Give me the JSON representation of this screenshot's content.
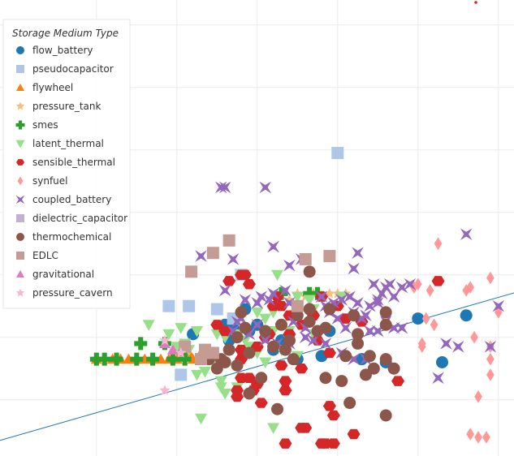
{
  "chart_data": {
    "type": "scatter",
    "title": "",
    "xlabel": "",
    "ylabel": "",
    "xlim": [
      0,
      6.5
    ],
    "ylim": [
      0,
      5.7
    ],
    "grid": true,
    "legend": {
      "title": "Storage Medium Type",
      "placement": "top-left"
    },
    "trendline": {
      "x": [
        0,
        6.5
      ],
      "y": [
        0.25,
        2.65
      ],
      "color": "#1f77b4"
    },
    "series": [
      {
        "name": "flow_battery",
        "marker": "circle",
        "color": "#1f77b4",
        "points": [
          [
            5.8,
            2.25
          ],
          [
            5.5,
            1.5
          ],
          [
            5.2,
            2.2
          ],
          [
            4.8,
            1.5
          ],
          [
            4.1,
            2.0
          ],
          [
            4.0,
            1.6
          ],
          [
            3.7,
            1.55
          ],
          [
            3.5,
            1.85
          ],
          [
            3.2,
            2.1
          ],
          [
            3.1,
            2.0
          ],
          [
            2.4,
            1.95
          ],
          [
            2.9,
            2.05
          ],
          [
            2.8,
            2.1
          ],
          [
            2.85,
            1.85
          ],
          [
            3.6,
            1.85
          ],
          [
            3.4,
            1.7
          ],
          [
            3.05,
            2.35
          ],
          [
            4.5,
            1.55
          ]
        ]
      },
      {
        "name": "pseudocapacitor",
        "marker": "square",
        "color": "#aec7e8",
        "points": [
          [
            4.2,
            4.85
          ],
          [
            2.1,
            2.4
          ],
          [
            2.35,
            2.4
          ],
          [
            2.7,
            2.35
          ],
          [
            2.25,
            1.3
          ],
          [
            2.9,
            2.2
          ],
          [
            3.0,
            2.9
          ]
        ]
      },
      {
        "name": "flywheel",
        "marker": "triangle-up",
        "color": "#ff7f0e",
        "points": [
          [
            1.2,
            1.55
          ],
          [
            1.4,
            1.55
          ],
          [
            1.5,
            1.55
          ],
          [
            1.6,
            1.55
          ],
          [
            1.7,
            1.55
          ],
          [
            1.8,
            1.55
          ],
          [
            1.9,
            1.55
          ],
          [
            2.0,
            1.55
          ],
          [
            2.1,
            1.55
          ],
          [
            2.2,
            1.55
          ],
          [
            2.4,
            1.55
          ],
          [
            2.55,
            1.55
          ],
          [
            2.65,
            1.55
          ],
          [
            2.75,
            1.55
          ],
          [
            2.5,
            1.65
          ],
          [
            2.35,
            1.65
          ]
        ]
      },
      {
        "name": "pressure_tank",
        "marker": "star",
        "color": "#ffbb78",
        "points": [
          [
            4.2,
            2.6
          ],
          [
            4.3,
            2.6
          ],
          [
            3.7,
            2.6
          ],
          [
            3.9,
            2.6
          ],
          [
            3.6,
            2.5
          ],
          [
            3.8,
            2.55
          ],
          [
            4.1,
            2.6
          ]
        ]
      },
      {
        "name": "smes",
        "marker": "plus",
        "color": "#2ca02c",
        "points": [
          [
            1.2,
            1.55
          ],
          [
            1.3,
            1.55
          ],
          [
            1.45,
            1.55
          ],
          [
            1.7,
            1.55
          ],
          [
            1.9,
            1.55
          ],
          [
            2.15,
            1.55
          ],
          [
            2.3,
            1.55
          ],
          [
            1.75,
            1.8
          ],
          [
            2.05,
            1.8
          ],
          [
            2.25,
            1.7
          ],
          [
            3.5,
            2.6
          ],
          [
            3.85,
            2.6
          ],
          [
            3.95,
            2.6
          ]
        ]
      },
      {
        "name": "latent_thermal",
        "marker": "triangle-down",
        "color": "#98df8a",
        "points": [
          [
            1.85,
            2.1
          ],
          [
            2.25,
            2.05
          ],
          [
            2.45,
            2.0
          ],
          [
            2.3,
            1.8
          ],
          [
            2.2,
            1.75
          ],
          [
            2.35,
            1.7
          ],
          [
            2.5,
            1.55
          ],
          [
            2.55,
            1.35
          ],
          [
            2.65,
            1.5
          ],
          [
            2.45,
            1.3
          ],
          [
            2.75,
            1.2
          ],
          [
            2.8,
            1.0
          ],
          [
            2.75,
            1.1
          ],
          [
            3.0,
            1.2
          ],
          [
            3.3,
            1.5
          ],
          [
            3.5,
            1.7
          ],
          [
            3.7,
            1.6
          ],
          [
            3.6,
            2.0
          ],
          [
            3.8,
            2.1
          ],
          [
            3.9,
            1.95
          ],
          [
            3.4,
            2.0
          ],
          [
            3.2,
            2.3
          ],
          [
            3.3,
            2.2
          ],
          [
            2.95,
            1.95
          ],
          [
            3.05,
            1.85
          ],
          [
            3.1,
            1.75
          ],
          [
            3.0,
            1.65
          ],
          [
            2.8,
            1.9
          ],
          [
            2.7,
            1.95
          ],
          [
            3.45,
            2.9
          ],
          [
            3.7,
            2.55
          ],
          [
            3.85,
            2.5
          ],
          [
            2.5,
            0.6
          ],
          [
            3.4,
            0.45
          ],
          [
            3.9,
            2.35
          ],
          [
            3.6,
            1.85
          ],
          [
            2.1,
            1.95
          ],
          [
            2.95,
            1.1
          ],
          [
            3.2,
            1.65
          ],
          [
            3.4,
            2.3
          ],
          [
            4.25,
            2.55
          ]
        ]
      },
      {
        "name": "sensible_thermal",
        "marker": "hexagon",
        "color": "#d62728",
        "points": [
          [
            3.0,
            2.9
          ],
          [
            3.05,
            2.9
          ],
          [
            2.85,
            2.8
          ],
          [
            3.4,
            2.4
          ],
          [
            3.5,
            1.45
          ],
          [
            3.55,
            1.2
          ],
          [
            3.55,
            1.05
          ],
          [
            3.75,
            1.4
          ],
          [
            3.0,
            1.55
          ],
          [
            3.0,
            1.25
          ],
          [
            3.1,
            1.25
          ],
          [
            2.95,
            1.05
          ],
          [
            2.95,
            0.95
          ],
          [
            3.15,
            1.05
          ],
          [
            3.2,
            1.15
          ],
          [
            3.25,
            0.85
          ],
          [
            3.0,
            1.7
          ],
          [
            2.7,
            2.1
          ],
          [
            2.8,
            2.0
          ],
          [
            3.5,
            2.4
          ],
          [
            3.6,
            1.95
          ],
          [
            3.95,
            1.85
          ],
          [
            4.1,
            1.65
          ],
          [
            4.15,
            0.65
          ],
          [
            4.1,
            0.8
          ],
          [
            3.75,
            0.45
          ],
          [
            3.8,
            0.45
          ],
          [
            3.55,
            0.2
          ],
          [
            4.0,
            0.2
          ],
          [
            4.05,
            0.2
          ],
          [
            4.15,
            0.2
          ],
          [
            4.4,
            0.35
          ],
          [
            4.95,
            1.2
          ],
          [
            3.9,
            2.25
          ],
          [
            4.5,
            2.15
          ],
          [
            3.6,
            2.25
          ],
          [
            3.1,
            2.75
          ],
          [
            5.45,
            2.8
          ],
          [
            3.45,
            2.55
          ],
          [
            3.3,
            1.9
          ],
          [
            3.2,
            1.75
          ],
          [
            3.35,
            1.95
          ],
          [
            3.75,
            2.1
          ],
          [
            3.65,
            1.55
          ],
          [
            4.3,
            2.2
          ],
          [
            4.0,
            2.55
          ],
          [
            3.85,
            2.35
          ],
          [
            4.2,
            2.4
          ]
        ]
      },
      {
        "name": "synfuel",
        "marker": "diamond",
        "color": "#ff9896",
        "points": [
          [
            5.45,
            3.4
          ],
          [
            5.2,
            2.75
          ],
          [
            5.15,
            2.7
          ],
          [
            5.35,
            2.65
          ],
          [
            5.8,
            2.65
          ],
          [
            5.85,
            2.7
          ],
          [
            6.1,
            2.85
          ],
          [
            6.45,
            2.55
          ],
          [
            6.45,
            2.65
          ],
          [
            6.2,
            2.3
          ],
          [
            5.4,
            2.1
          ],
          [
            5.25,
            1.75
          ],
          [
            5.3,
            2.2
          ],
          [
            5.9,
            1.9
          ],
          [
            6.1,
            1.75
          ],
          [
            6.1,
            1.55
          ],
          [
            6.1,
            1.3
          ],
          [
            5.95,
            0.95
          ],
          [
            5.85,
            0.35
          ],
          [
            5.95,
            0.3
          ],
          [
            6.05,
            0.3
          ],
          [
            5.25,
            1.8
          ],
          [
            6.45,
            2.3
          ]
        ]
      },
      {
        "name": "coupled_battery",
        "marker": "star4",
        "color": "#9467bd",
        "points": [
          [
            2.75,
            4.3
          ],
          [
            2.8,
            4.3
          ],
          [
            3.3,
            4.3
          ],
          [
            5.8,
            3.55
          ],
          [
            2.5,
            3.2
          ],
          [
            2.9,
            3.15
          ],
          [
            3.4,
            3.35
          ],
          [
            3.6,
            3.05
          ],
          [
            3.75,
            3.15
          ],
          [
            4.45,
            3.25
          ],
          [
            4.4,
            3.0
          ],
          [
            2.8,
            2.65
          ],
          [
            3.05,
            2.5
          ],
          [
            3.2,
            2.45
          ],
          [
            3.35,
            2.5
          ],
          [
            3.55,
            2.65
          ],
          [
            3.6,
            2.45
          ],
          [
            4.0,
            2.55
          ],
          [
            4.25,
            2.5
          ],
          [
            4.35,
            2.55
          ],
          [
            4.45,
            2.45
          ],
          [
            4.6,
            2.4
          ],
          [
            4.7,
            2.5
          ],
          [
            4.75,
            2.6
          ],
          [
            4.8,
            2.7
          ],
          [
            4.85,
            2.75
          ],
          [
            4.9,
            2.55
          ],
          [
            5.0,
            2.7
          ],
          [
            5.1,
            2.75
          ],
          [
            4.55,
            2.25
          ],
          [
            4.5,
            2.2
          ],
          [
            4.6,
            2.0
          ],
          [
            4.8,
            2.15
          ],
          [
            4.9,
            2.05
          ],
          [
            5.0,
            2.05
          ],
          [
            4.7,
            2.0
          ],
          [
            4.3,
            2.05
          ],
          [
            4.2,
            2.2
          ],
          [
            4.1,
            2.3
          ],
          [
            4.4,
            2.3
          ],
          [
            4.65,
            2.75
          ],
          [
            3.0,
            2.2
          ],
          [
            3.2,
            2.1
          ],
          [
            2.9,
            2.0
          ],
          [
            3.1,
            1.95
          ],
          [
            2.95,
            2.15
          ],
          [
            3.3,
            1.85
          ],
          [
            3.45,
            1.8
          ],
          [
            3.6,
            1.8
          ],
          [
            3.8,
            2.05
          ],
          [
            3.9,
            1.85
          ],
          [
            4.05,
            1.8
          ],
          [
            4.25,
            1.65
          ],
          [
            4.4,
            1.55
          ],
          [
            4.55,
            1.55
          ],
          [
            4.7,
            2.45
          ],
          [
            4.15,
            2.45
          ],
          [
            5.45,
            1.25
          ],
          [
            5.55,
            1.8
          ],
          [
            5.7,
            1.75
          ],
          [
            6.1,
            1.75
          ],
          [
            6.2,
            2.4
          ],
          [
            3.25,
            2.55
          ],
          [
            3.4,
            2.6
          ],
          [
            3.7,
            2.35
          ],
          [
            4.05,
            2.4
          ],
          [
            3.8,
            1.9
          ],
          [
            3.65,
            2.15
          ]
        ]
      },
      {
        "name": "dielectric_capacitor",
        "marker": "square",
        "color": "#c5b0d5",
        "points": []
      },
      {
        "name": "thermochemical",
        "marker": "circle",
        "color": "#8c564b",
        "points": [
          [
            3.85,
            2.95
          ],
          [
            3.0,
            2.3
          ],
          [
            3.85,
            2.35
          ],
          [
            3.85,
            2.15
          ],
          [
            4.1,
            2.35
          ],
          [
            4.8,
            2.3
          ],
          [
            4.8,
            2.1
          ],
          [
            4.45,
            1.95
          ],
          [
            4.45,
            1.8
          ],
          [
            4.3,
            1.6
          ],
          [
            4.6,
            1.6
          ],
          [
            4.8,
            1.55
          ],
          [
            4.65,
            1.4
          ],
          [
            4.9,
            1.4
          ],
          [
            4.55,
            1.3
          ],
          [
            4.25,
            1.2
          ],
          [
            4.05,
            1.25
          ],
          [
            3.65,
            1.55
          ],
          [
            3.55,
            1.7
          ],
          [
            3.4,
            1.75
          ],
          [
            3.6,
            1.85
          ],
          [
            3.1,
            1.65
          ],
          [
            2.85,
            1.7
          ],
          [
            2.8,
            1.5
          ],
          [
            2.7,
            1.4
          ],
          [
            3.25,
            1.25
          ],
          [
            3.1,
            1.0
          ],
          [
            3.45,
            0.75
          ],
          [
            4.35,
            0.85
          ],
          [
            4.8,
            0.65
          ],
          [
            2.95,
            1.9
          ],
          [
            3.05,
            2.05
          ],
          [
            3.3,
            2.0
          ],
          [
            3.5,
            2.1
          ],
          [
            4.05,
            2.05
          ],
          [
            3.7,
            2.25
          ],
          [
            2.75,
            1.55
          ],
          [
            2.95,
            1.45
          ],
          [
            2.6,
            1.55
          ],
          [
            4.4,
            2.25
          ],
          [
            3.95,
            2.0
          ]
        ]
      },
      {
        "name": "EDLC",
        "marker": "square",
        "color": "#c49c94",
        "points": [
          [
            2.85,
            3.45
          ],
          [
            2.65,
            3.25
          ],
          [
            2.38,
            2.95
          ],
          [
            3.8,
            3.15
          ],
          [
            4.1,
            3.2
          ],
          [
            3.7,
            2.4
          ],
          [
            2.3,
            1.75
          ],
          [
            2.55,
            1.7
          ],
          [
            2.65,
            1.65
          ],
          [
            2.5,
            1.55
          ]
        ]
      },
      {
        "name": "gravitational",
        "marker": "triangle-up",
        "color": "#e377c2",
        "points": [
          [
            2.05,
            1.8
          ],
          [
            2.15,
            1.7
          ]
        ]
      },
      {
        "name": "pressure_cavern",
        "marker": "star",
        "color": "#f7b6d2",
        "points": [
          [
            2.05,
            1.85
          ],
          [
            2.05,
            1.05
          ],
          [
            2.25,
            1.65
          ]
        ]
      }
    ]
  }
}
